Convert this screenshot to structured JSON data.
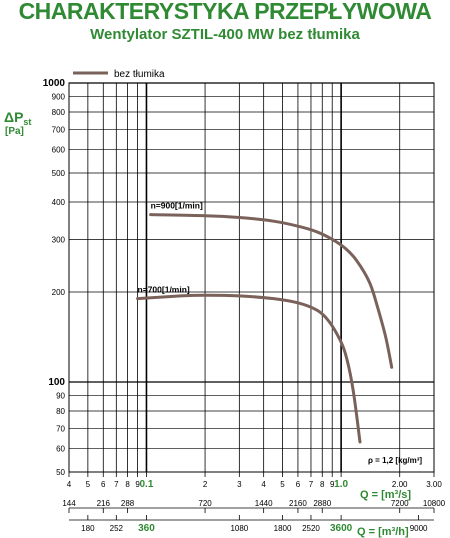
{
  "header": {
    "title": "CHARAKTERYSTYKA PRZEPŁYWOWA",
    "subtitle": "Wentylator SZTIL-400 MW bez tłumika"
  },
  "colors": {
    "text": "#2f8a33",
    "curve": "#7a625a",
    "grid": "#000000"
  },
  "chart_data": {
    "type": "line",
    "title": "CHARAKTERYSTYKA PRZEPŁYWOWA",
    "subtitle": "Wentylator SZTIL-400 MW bez tłumika",
    "xscale": "log",
    "yscale": "log",
    "xlim": [
      0.04,
      3.0
    ],
    "ylim": [
      50,
      1000
    ],
    "grid": true,
    "legend": {
      "position": "top-left",
      "entries": [
        "bez tłumika"
      ]
    },
    "ylabel": {
      "main": "ΔP",
      "sub": "st",
      "unit": "[Pa]"
    },
    "xlabel_top": "Q = [m³/s]",
    "xlabel_bottom": "Q = [m³/h]",
    "y_ticks": [
      {
        "v": 50,
        "label": "50",
        "bold": false
      },
      {
        "v": 60,
        "label": "60",
        "bold": false
      },
      {
        "v": 70,
        "label": "70",
        "bold": false
      },
      {
        "v": 80,
        "label": "80",
        "bold": false
      },
      {
        "v": 90,
        "label": "90",
        "bold": false
      },
      {
        "v": 100,
        "label": "100",
        "bold": true
      },
      {
        "v": 200,
        "label": "200",
        "bold": false
      },
      {
        "v": 300,
        "label": "300",
        "bold": false
      },
      {
        "v": 400,
        "label": "400",
        "bold": false
      },
      {
        "v": 500,
        "label": "500",
        "bold": false
      },
      {
        "v": 600,
        "label": "600",
        "bold": false
      },
      {
        "v": 700,
        "label": "700",
        "bold": false
      },
      {
        "v": 800,
        "label": "800",
        "bold": false
      },
      {
        "v": 900,
        "label": "900",
        "bold": false
      },
      {
        "v": 1000,
        "label": "1000",
        "bold": true
      }
    ],
    "x_ticks_m3s": [
      {
        "v": 0.04,
        "label": "4",
        "bold": false
      },
      {
        "v": 0.05,
        "label": "5",
        "bold": false
      },
      {
        "v": 0.06,
        "label": "6",
        "bold": false
      },
      {
        "v": 0.07,
        "label": "7",
        "bold": false
      },
      {
        "v": 0.08,
        "label": "8",
        "bold": false
      },
      {
        "v": 0.09,
        "label": "9",
        "bold": false
      },
      {
        "v": 0.1,
        "label": "0.1",
        "bold": true
      },
      {
        "v": 0.2,
        "label": "2",
        "bold": false
      },
      {
        "v": 0.3,
        "label": "3",
        "bold": false
      },
      {
        "v": 0.4,
        "label": "4",
        "bold": false
      },
      {
        "v": 0.5,
        "label": "5",
        "bold": false
      },
      {
        "v": 0.6,
        "label": "6",
        "bold": false
      },
      {
        "v": 0.7,
        "label": "7",
        "bold": false
      },
      {
        "v": 0.8,
        "label": "8",
        "bold": false
      },
      {
        "v": 0.9,
        "label": "9",
        "bold": false
      },
      {
        "v": 1.0,
        "label": "1.0",
        "bold": true
      },
      {
        "v": 2.0,
        "label": "2.00",
        "bold": false
      },
      {
        "v": 3.0,
        "label": "3.00",
        "bold": false
      }
    ],
    "x_ticks_m3h_upper": [
      {
        "v": 144,
        "label": "144",
        "bold": false
      },
      {
        "v": 216,
        "label": "216",
        "bold": false
      },
      {
        "v": 288,
        "label": "288",
        "bold": false
      },
      {
        "v": 720,
        "label": "720",
        "bold": false
      },
      {
        "v": 1440,
        "label": "1440",
        "bold": false
      },
      {
        "v": 2160,
        "label": "2160",
        "bold": false
      },
      {
        "v": 2880,
        "label": "2880",
        "bold": false
      },
      {
        "v": 7200,
        "label": "7200",
        "bold": false
      },
      {
        "v": 10800,
        "label": "10800",
        "bold": false
      }
    ],
    "x_ticks_m3h_lower": [
      {
        "v": 180,
        "label": "180",
        "bold": false
      },
      {
        "v": 252,
        "label": "252",
        "bold": false
      },
      {
        "v": 360,
        "label": "360",
        "bold": true
      },
      {
        "v": 1080,
        "label": "1080",
        "bold": false
      },
      {
        "v": 1800,
        "label": "1800",
        "bold": false
      },
      {
        "v": 2520,
        "label": "2520",
        "bold": false
      },
      {
        "v": 3600,
        "label": "3600",
        "bold": true
      },
      {
        "v": 9000,
        "label": "9000",
        "bold": false
      }
    ],
    "series": [
      {
        "name": "n=900[1/min]",
        "x": [
          0.105,
          0.2,
          0.3,
          0.45,
          0.6,
          0.75,
          0.9,
          1.05,
          1.2,
          1.4,
          1.55,
          1.7,
          1.82
        ],
        "y": [
          363,
          360,
          355,
          345,
          332,
          318,
          300,
          280,
          255,
          215,
          175,
          140,
          112
        ]
      },
      {
        "name": "n=700[1/min]",
        "x": [
          0.09,
          0.15,
          0.2,
          0.3,
          0.45,
          0.6,
          0.75,
          0.85,
          0.95,
          1.05,
          1.15,
          1.25
        ],
        "y": [
          190,
          194,
          195,
          194,
          190,
          184,
          174,
          162,
          145,
          125,
          95,
          63
        ]
      }
    ],
    "annotation": {
      "label": "ρ = 1,2 [kg/m³]"
    }
  }
}
